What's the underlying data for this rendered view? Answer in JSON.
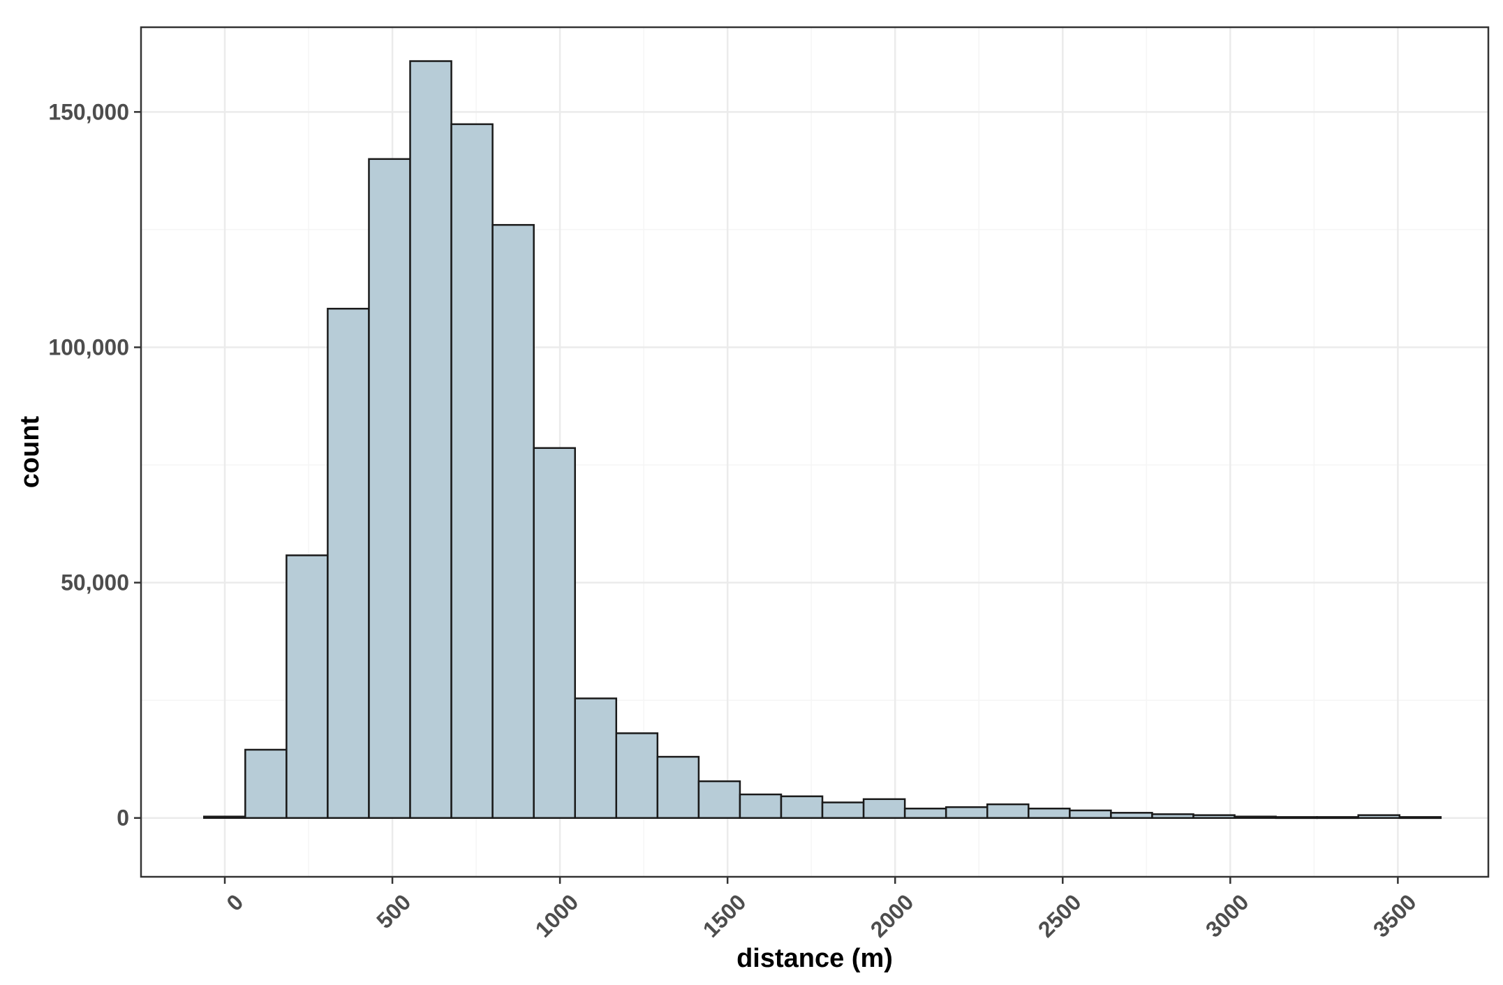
{
  "chart_data": {
    "type": "bar",
    "subtype": "histogram",
    "xlabel": "distance (m)",
    "ylabel": "count",
    "xlim": [
      -250,
      3770
    ],
    "ylim": [
      -12500,
      168000
    ],
    "x_ticks": [
      0,
      500,
      1000,
      1500,
      2000,
      2500,
      3000,
      3500
    ],
    "x_tick_labels": [
      "0",
      "500",
      "1000",
      "1500",
      "2000",
      "2500",
      "3000",
      "3500"
    ],
    "x_minor_ticks": [
      250,
      750,
      1250,
      1750,
      2250,
      2750,
      3250
    ],
    "y_ticks": [
      0,
      50000,
      100000,
      150000
    ],
    "y_tick_labels": [
      "0",
      "50,000",
      "100,000",
      "150,000"
    ],
    "y_minor_ticks": [
      25000,
      75000,
      125000
    ],
    "grid": true,
    "bin_width": 123,
    "bin_edges": [
      -62,
      61,
      184,
      307,
      430,
      553,
      676,
      799,
      922,
      1045,
      1168,
      1291,
      1414,
      1537,
      1660,
      1783,
      1906,
      2029,
      2152,
      2275,
      2398,
      2521,
      2644,
      2767,
      2890,
      3013,
      3136,
      3259,
      3382,
      3505,
      3628
    ],
    "values": [
      300,
      14500,
      55800,
      108200,
      140000,
      160800,
      147400,
      126000,
      78600,
      25400,
      18000,
      13000,
      7800,
      5000,
      4600,
      3300,
      4000,
      2000,
      2300,
      2900,
      2000,
      1600,
      1100,
      800,
      600,
      300,
      200,
      200,
      600,
      200
    ],
    "colors": {
      "bar_fill": "#b7ccd7",
      "bar_stroke": "#1a1a1a",
      "grid_major": "#ebebeb",
      "grid_minor": "#f5f5f5",
      "panel_border": "#333333"
    }
  }
}
